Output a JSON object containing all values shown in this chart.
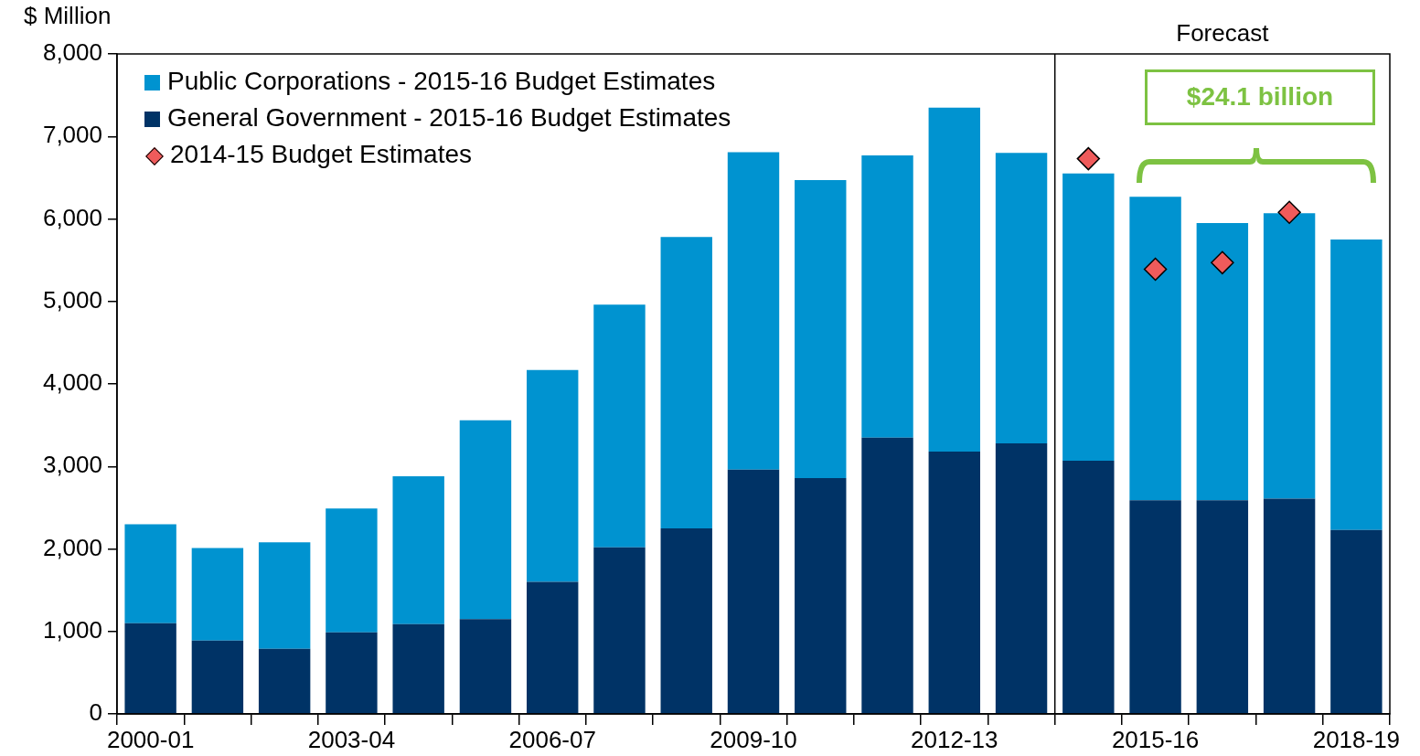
{
  "chart_data": {
    "type": "bar",
    "stacked": true,
    "ylabel": "$ Million",
    "categories": [
      "2000-01",
      null,
      null,
      "2003-04",
      null,
      null,
      "2006-07",
      null,
      null,
      "2009-10",
      null,
      null,
      "2012-13",
      null,
      null,
      "2015-16",
      null,
      null,
      "2018-19"
    ],
    "series": [
      {
        "name": "General Government - 2015-16 Budget Estimates",
        "color": "#003366",
        "values": [
          1100,
          890,
          790,
          990,
          1090,
          1150,
          1600,
          2020,
          2250,
          2960,
          2860,
          3350,
          3180,
          3280,
          3070,
          2590,
          2590,
          2610,
          2230
        ]
      },
      {
        "name": "Public Corporations - 2015-16 Budget Estimates",
        "color": "#0093d0",
        "values": [
          1200,
          1120,
          1290,
          1500,
          1790,
          2410,
          2570,
          2940,
          3530,
          3850,
          3610,
          3420,
          4170,
          3520,
          3480,
          3680,
          3360,
          3460,
          3520
        ]
      },
      {
        "name": "2014-15 Budget Estimates",
        "type": "scatter",
        "color": "#ef5b5b",
        "values": [
          null,
          null,
          null,
          null,
          null,
          null,
          null,
          null,
          null,
          null,
          null,
          null,
          null,
          null,
          6730,
          5390,
          5470,
          6080,
          null
        ]
      }
    ],
    "marker": "diamond",
    "ylim": [
      0,
      8000
    ],
    "yticks": [
      0,
      {
        "value": 1000,
        "label": "1,000"
      },
      {
        "value": 2000,
        "label": "2,000"
      },
      {
        "value": 3000,
        "label": "3,000"
      },
      {
        "value": 4000,
        "label": "4,000"
      },
      {
        "value": 5000,
        "label": "5,000"
      },
      {
        "value": 6000,
        "label": "6,000"
      },
      {
        "value": 7000,
        "label": "7,000"
      },
      {
        "value": 8000,
        "label": "8,000"
      }
    ],
    "annotations": [
      "Forecast",
      "$24.1 billion"
    ],
    "legend": "top left",
    "grid": false
  }
}
